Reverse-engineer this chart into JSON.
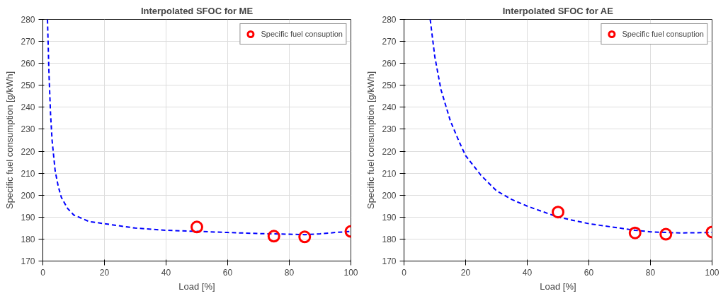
{
  "chart_data": [
    {
      "type": "scatter",
      "title": "Interpolated SFOC for ME",
      "xlabel": "Load [%]",
      "ylabel": "Specific fuel consumption [g/kWh]",
      "xlim": [
        0,
        100
      ],
      "ylim": [
        170,
        280
      ],
      "xticks": [
        0,
        20,
        40,
        60,
        80,
        100
      ],
      "yticks": [
        170,
        180,
        190,
        200,
        210,
        220,
        230,
        240,
        250,
        260,
        270,
        280
      ],
      "grid": true,
      "legend": "top right",
      "series": [
        {
          "type": "line",
          "color": "#0000ff",
          "line_style": "dashed",
          "marker": "none",
          "x": [
            1.5,
            2,
            2.5,
            3,
            4,
            5,
            6,
            8,
            10,
            15,
            20,
            30,
            40,
            50,
            60,
            70,
            80,
            85,
            90,
            95,
            100
          ],
          "values": [
            280,
            255,
            237,
            225,
            211,
            204,
            199,
            194,
            191,
            188,
            187,
            185,
            184,
            183.5,
            183,
            182.5,
            182.2,
            182,
            182.4,
            183,
            183.5
          ]
        },
        {
          "name": "Specific fuel consuption",
          "color": "#ff0000",
          "marker": "circle",
          "x": [
            50,
            75,
            85,
            100
          ],
          "values": [
            185.5,
            181.3,
            181,
            183.5
          ]
        }
      ]
    },
    {
      "type": "scatter",
      "title": "Interpolated SFOC for AE",
      "xlabel": "Load [%]",
      "ylabel": "Specific fuel consumption [g/kWh]",
      "xlim": [
        0,
        100
      ],
      "ylim": [
        170,
        280
      ],
      "xticks": [
        0,
        20,
        40,
        60,
        80,
        100
      ],
      "yticks": [
        170,
        180,
        190,
        200,
        210,
        220,
        230,
        240,
        250,
        260,
        270,
        280
      ],
      "grid": true,
      "legend": "top right",
      "series": [
        {
          "type": "line",
          "color": "#0000ff",
          "line_style": "dashed",
          "marker": "none",
          "x": [
            8.5,
            10,
            12,
            15,
            18,
            20,
            25,
            30,
            35,
            40,
            50,
            60,
            70,
            75,
            80,
            85,
            90,
            95,
            100
          ],
          "values": [
            280,
            263,
            248,
            234,
            224,
            218,
            209,
            202,
            198,
            195,
            190,
            187,
            185,
            184,
            183.3,
            183,
            182.8,
            182.9,
            183
          ]
        },
        {
          "name": "Specific fuel consuption",
          "color": "#ff0000",
          "marker": "circle",
          "x": [
            50,
            75,
            85,
            100
          ],
          "values": [
            192.3,
            182.8,
            182.2,
            183.2
          ]
        }
      ]
    }
  ]
}
